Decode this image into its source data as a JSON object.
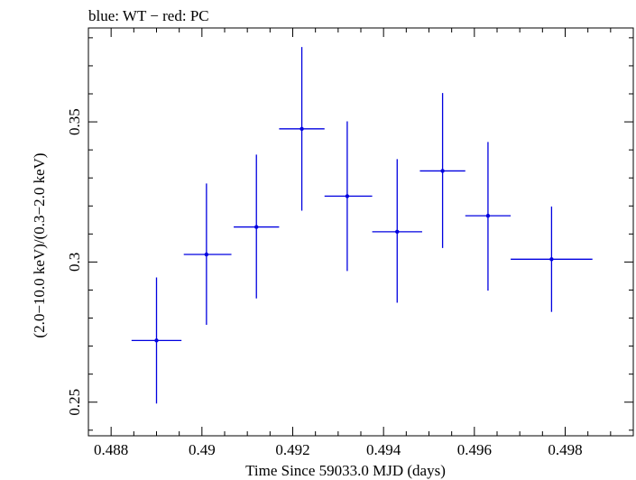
{
  "chart_data": {
    "type": "scatter",
    "title": "blue: WT − red: PC",
    "xlabel": "Time Since 59033.0 MJD (days)",
    "ylabel": "(2.0−10.0 keV)/(0.3−2.0 keV)",
    "xlim": [
      0.4875,
      0.4995
    ],
    "ylim": [
      0.238,
      0.3835
    ],
    "x_ticks": {
      "major": [
        0.488,
        0.49,
        0.492,
        0.494,
        0.496,
        0.498
      ],
      "major_labels": [
        "0.488",
        "0.49",
        "0.492",
        "0.494",
        "0.496",
        "0.498"
      ],
      "minor_step": 0.0005
    },
    "y_ticks": {
      "major": [
        0.25,
        0.3,
        0.35
      ],
      "major_labels": [
        "0.25",
        "0.3",
        "0.35"
      ],
      "minor_step": 0.01
    },
    "grid": false,
    "series": [
      {
        "color": "#0000e0",
        "points": [
          {
            "x": 0.489,
            "y": 0.272,
            "xerr_lo": 0.00055,
            "xerr_hi": 0.00055,
            "y_lo": 0.2495,
            "y_hi": 0.2945
          },
          {
            "x": 0.4901,
            "y": 0.3027,
            "xerr_lo": 0.0005,
            "xerr_hi": 0.00055,
            "y_lo": 0.2776,
            "y_hi": 0.328
          },
          {
            "x": 0.4912,
            "y": 0.3125,
            "xerr_lo": 0.0005,
            "xerr_hi": 0.0005,
            "y_lo": 0.287,
            "y_hi": 0.3383
          },
          {
            "x": 0.4922,
            "y": 0.3475,
            "xerr_lo": 0.0005,
            "xerr_hi": 0.0005,
            "y_lo": 0.3183,
            "y_hi": 0.3767
          },
          {
            "x": 0.4932,
            "y": 0.3235,
            "xerr_lo": 0.0005,
            "xerr_hi": 0.00055,
            "y_lo": 0.2968,
            "y_hi": 0.3502
          },
          {
            "x": 0.4943,
            "y": 0.3108,
            "xerr_lo": 0.00055,
            "xerr_hi": 0.00055,
            "y_lo": 0.2855,
            "y_hi": 0.3367
          },
          {
            "x": 0.4953,
            "y": 0.3325,
            "xerr_lo": 0.0005,
            "xerr_hi": 0.0005,
            "y_lo": 0.305,
            "y_hi": 0.3603
          },
          {
            "x": 0.4963,
            "y": 0.3165,
            "xerr_lo": 0.0005,
            "xerr_hi": 0.0005,
            "y_lo": 0.2898,
            "y_hi": 0.3428
          },
          {
            "x": 0.4977,
            "y": 0.301,
            "xerr_lo": 0.0009,
            "xerr_hi": 0.0009,
            "y_lo": 0.2822,
            "y_hi": 0.3198
          }
        ]
      }
    ]
  }
}
